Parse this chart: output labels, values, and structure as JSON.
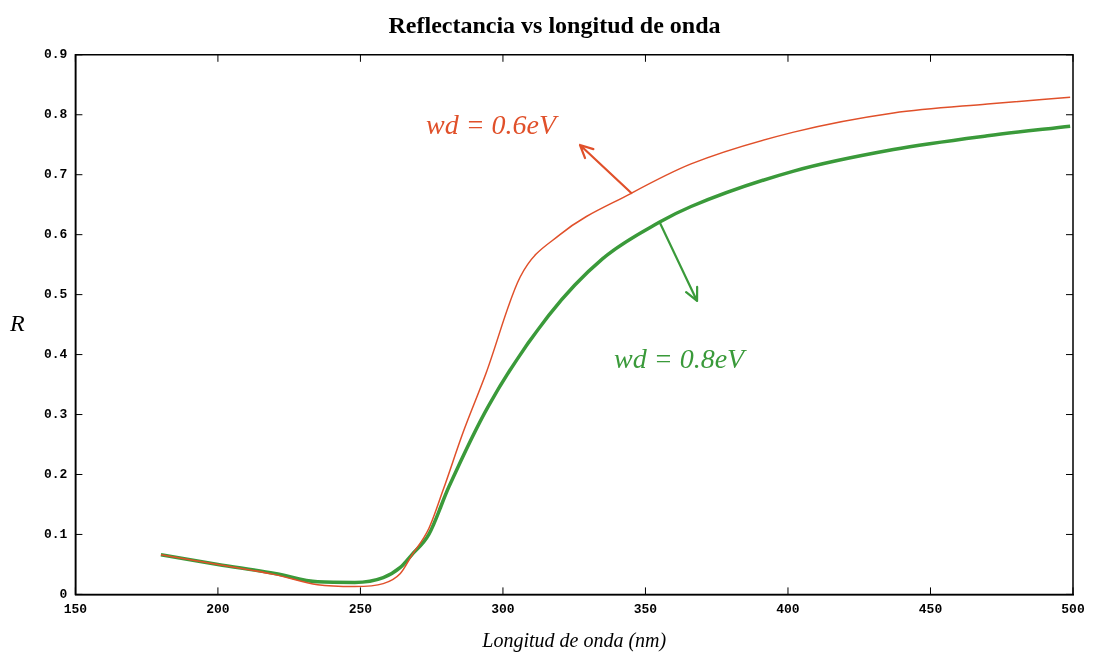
{
  "chart_data": {
    "type": "line",
    "title": "Reflectancia vs longitud de onda",
    "xlabel": "Longitud de onda (nm)",
    "ylabel": "R",
    "xlim": [
      150,
      500
    ],
    "xticks": [
      150,
      200,
      250,
      300,
      350,
      400,
      450,
      500
    ],
    "ylim": [
      0,
      0.9
    ],
    "yticks": [
      0,
      0.1,
      0.2,
      0.3,
      0.4,
      0.5,
      0.6,
      0.7,
      0.8,
      0.9
    ],
    "grid": false,
    "legend": false,
    "marker": "none",
    "line_style": "solid",
    "series": [
      {
        "name": "wd = 0.6eV",
        "color": "#e0502a",
        "x": [
          180,
          200,
          220,
          235,
          248,
          258,
          264,
          268,
          274,
          279,
          286,
          294,
          306,
          320,
          345,
          366,
          402,
          437,
          470,
          499
        ],
        "values": [
          0.066,
          0.05,
          0.033,
          0.016,
          0.013,
          0.018,
          0.035,
          0.065,
          0.11,
          0.174,
          0.27,
          0.368,
          0.529,
          0.6,
          0.669,
          0.718,
          0.771,
          0.803,
          0.818,
          0.829
        ]
      },
      {
        "name": "wd = 0.8eV",
        "color": "#3a9a3a",
        "x": [
          180,
          200,
          220,
          235,
          248,
          258,
          264,
          268,
          274,
          281,
          295,
          316,
          335,
          355,
          366,
          402,
          437,
          470,
          499
        ],
        "values": [
          0.066,
          0.05,
          0.035,
          0.021,
          0.02,
          0.028,
          0.045,
          0.066,
          0.1,
          0.179,
          0.315,
          0.465,
          0.56,
          0.621,
          0.647,
          0.706,
          0.742,
          0.765,
          0.781
        ]
      }
    ]
  }
}
